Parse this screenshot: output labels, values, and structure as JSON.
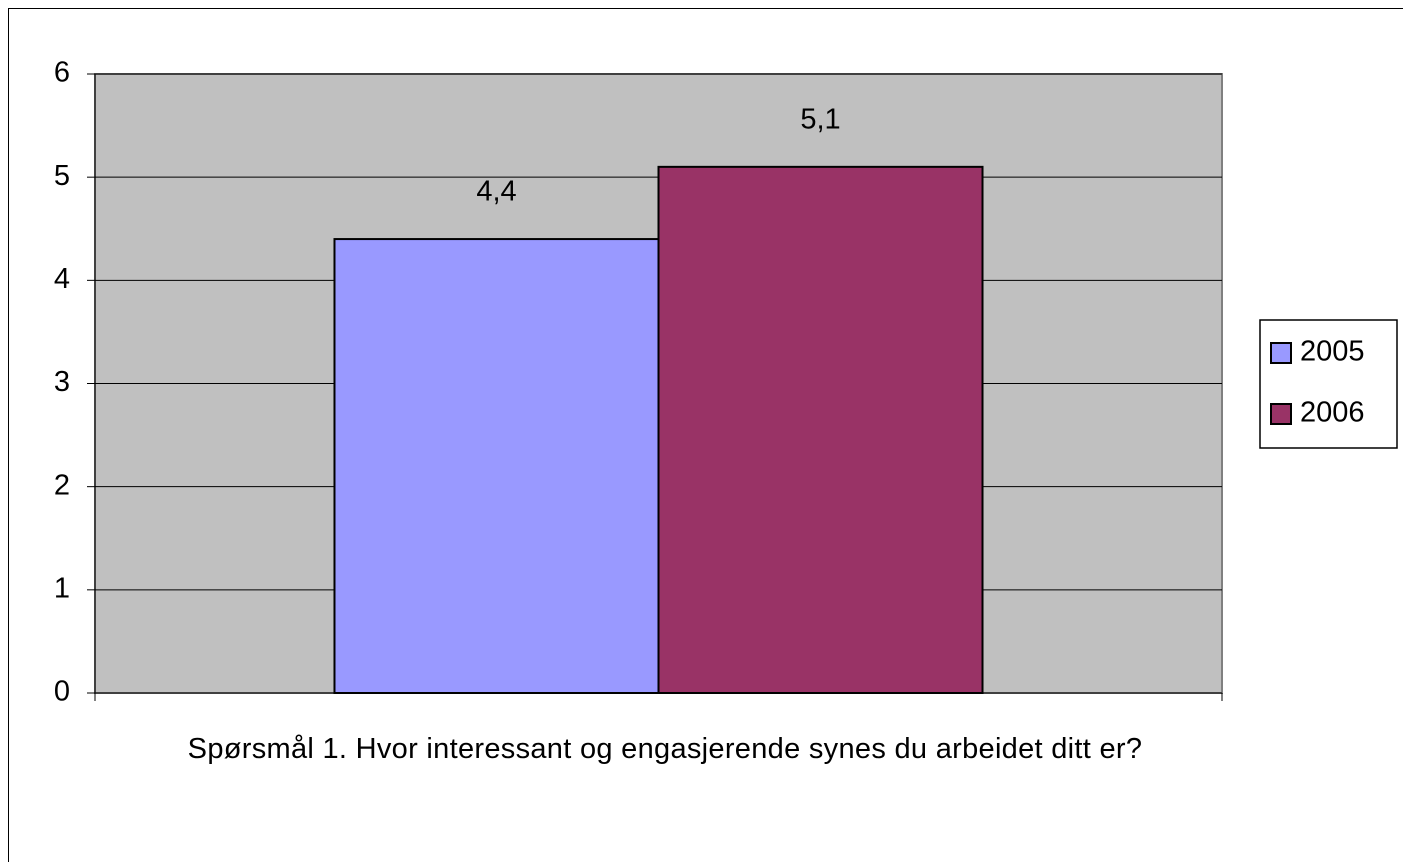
{
  "chart_data": {
    "type": "bar",
    "categories": [
      "Spørsmål 1. Hvor interessant og engasjerende synes du arbeidet ditt er?"
    ],
    "series": [
      {
        "name": "2005",
        "color": "#9999ff",
        "values": [
          4.4
        ],
        "value_labels": [
          "4,4"
        ]
      },
      {
        "name": "2006",
        "color": "#993366",
        "values": [
          5.1
        ],
        "value_labels": [
          "5,1"
        ]
      }
    ],
    "ylim": [
      0,
      6
    ],
    "yticks": [
      0,
      1,
      2,
      3,
      4,
      5,
      6
    ],
    "grid": true,
    "legend": "right"
  }
}
